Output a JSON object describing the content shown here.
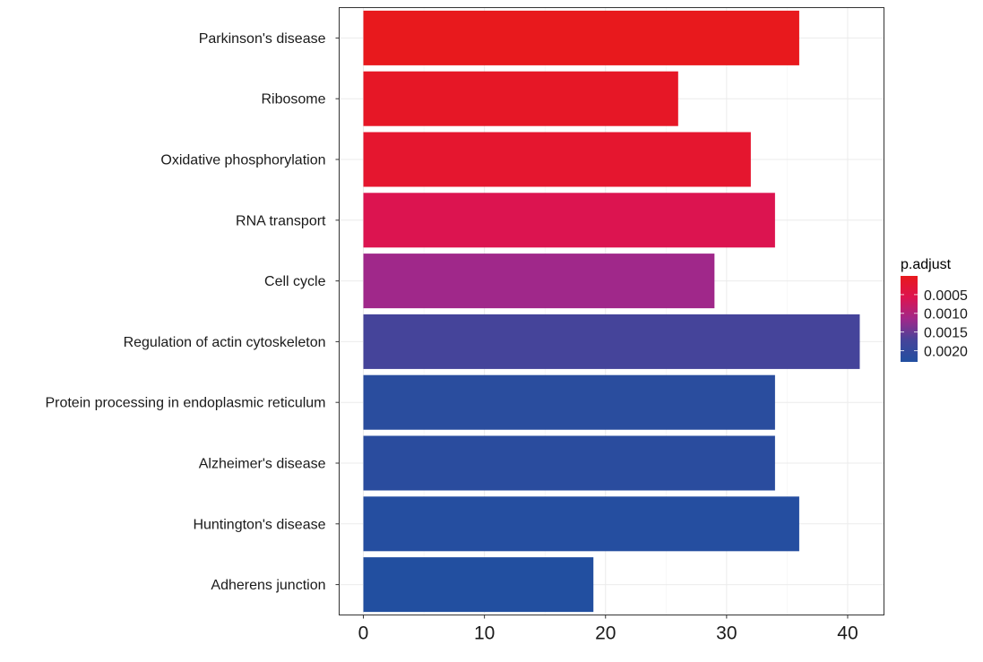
{
  "chart_data": {
    "type": "bar",
    "orientation": "horizontal",
    "title": "",
    "xlabel": "",
    "ylabel": "",
    "xlim": [
      -2,
      43
    ],
    "x_ticks": [
      0,
      10,
      20,
      30,
      40
    ],
    "grid": true,
    "categories": [
      "Parkinson's disease",
      "Ribosome",
      "Oxidative phosphorylation",
      "RNA transport",
      "Cell cycle",
      "Regulation of actin cytoskeleton",
      "Protein processing in endoplasmic reticulum",
      "Alzheimer's disease",
      "Huntington's disease",
      "Adherens junction"
    ],
    "values": [
      36,
      26,
      32,
      34,
      29,
      41,
      34,
      34,
      36,
      19
    ],
    "p_adjust": [
      2e-05,
      0.0001,
      0.0002,
      0.0006,
      0.0015,
      0.002,
      0.0022,
      0.0022,
      0.0023,
      0.0023
    ],
    "colors": [
      "#E8191D",
      "#E61726",
      "#E5162F",
      "#DC1450",
      "#A0288A",
      "#45449A",
      "#2A4D9E",
      "#2A4C9E",
      "#254EA0",
      "#224FA0"
    ],
    "legend": {
      "title": "p.adjust",
      "position": "right",
      "ticks": [
        "0.0005",
        "0.0010",
        "0.0015",
        "0.0020"
      ],
      "range": [
        0,
        0.0023
      ],
      "gradient": [
        "#E8191D",
        "#DC1450",
        "#A0288A",
        "#45449A",
        "#224FA0"
      ]
    }
  }
}
